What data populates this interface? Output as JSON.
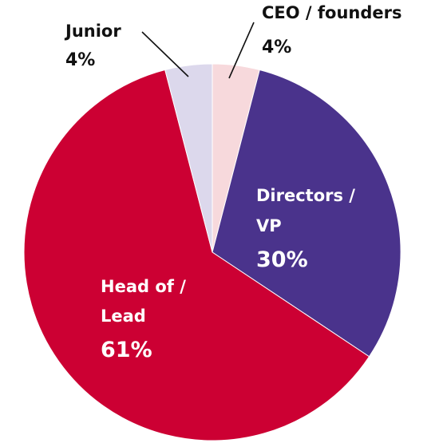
{
  "chart_data": {
    "type": "pie",
    "title": "",
    "slices": [
      {
        "label": "CEO / founders",
        "label_lines": [
          "CEO / founders"
        ],
        "value": 4,
        "value_label": "4%",
        "color": "#f7d9dc",
        "label_position": "outside"
      },
      {
        "label": "Directors / VP",
        "label_lines": [
          "Directors /",
          "VP"
        ],
        "value": 30,
        "value_label": "30%",
        "color": "#4a338c",
        "label_position": "inside"
      },
      {
        "label": "Head of / Lead",
        "label_lines": [
          "Head of /",
          "Lead"
        ],
        "value": 61,
        "value_label": "61%",
        "color": "#cc0033",
        "label_position": "inside"
      },
      {
        "label": "Junior",
        "label_lines": [
          "Junior"
        ],
        "value": 4,
        "value_label": "4%",
        "color": "#dcd8ec",
        "label_position": "outside"
      }
    ],
    "start_angle": "12 o'clock",
    "direction": "clockwise",
    "legend": "none"
  }
}
